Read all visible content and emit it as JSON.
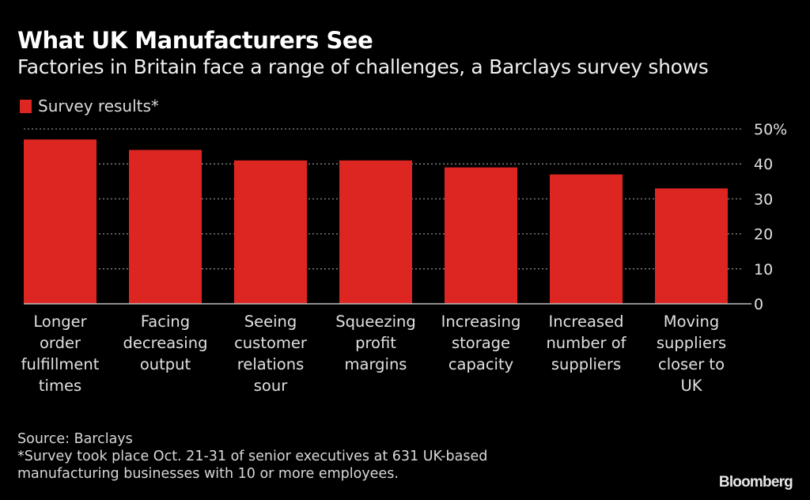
{
  "header": {
    "title": "What UK Manufacturers See",
    "subtitle": "Factories in Britain face a range of challenges, a Barclays survey shows"
  },
  "footer": {
    "source": "Source: Barclays",
    "note_line1": "*Survey took place Oct. 21-31 of senior executives at 631 UK-based",
    "note_line2": "manufacturing businesses with 10 or more employees.",
    "logo": "Bloomberg"
  },
  "colors": {
    "background": "#000000",
    "bar": "#dd2622",
    "grid": "#8a8a8a",
    "text": "#e0e0e0"
  },
  "chart_data": {
    "type": "bar",
    "title": "What UK Manufacturers See",
    "subtitle": "Factories in Britain face a range of challenges, a Barclays survey shows",
    "xlabel": "",
    "ylabel": "",
    "legend": {
      "entries": [
        "Survey results*"
      ],
      "placement": "top-left"
    },
    "categories": [
      [
        "Longer",
        "order",
        "fulfillment",
        "times"
      ],
      [
        "Facing",
        "decreasing",
        "output"
      ],
      [
        "Seeing",
        "customer",
        "relations",
        "sour"
      ],
      [
        "Squeezing",
        "profit",
        "margins"
      ],
      [
        "Increasing",
        "storage",
        "capacity"
      ],
      [
        "Increased",
        "number of",
        "suppliers"
      ],
      [
        "Moving",
        "suppliers",
        "closer to",
        "UK"
      ]
    ],
    "series": [
      {
        "name": "Survey results*",
        "values": [
          47,
          44,
          41,
          41,
          39,
          37,
          33
        ]
      }
    ],
    "ylim": [
      0,
      50
    ],
    "yticks": [
      0,
      10,
      20,
      30,
      40,
      50
    ],
    "ytick_labels": [
      "0",
      "10",
      "20",
      "30",
      "40",
      "50%"
    ],
    "y_axis_side": "right",
    "grid": true
  }
}
